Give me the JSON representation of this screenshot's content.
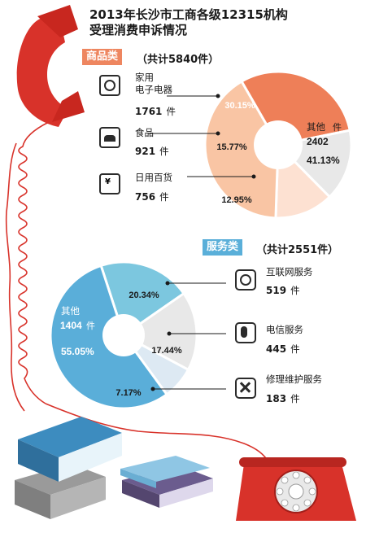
{
  "title_line1": "2013年长沙市工商各级12315机构",
  "title_line2": "受理消费申诉情况",
  "unit": "件",
  "goods": {
    "tag": "商品类",
    "total": "（共计5840件）",
    "items": [
      {
        "label": "家用\n电子电器",
        "count": "1761",
        "pct": "30.15%"
      },
      {
        "label": "食品",
        "count": "921",
        "pct": "15.77%"
      },
      {
        "label": "日用百货",
        "count": "756",
        "pct": "12.95%"
      },
      {
        "label": "其他",
        "count": "2402",
        "pct": "41.13%"
      }
    ]
  },
  "services": {
    "tag": "服务类",
    "total": "（共计2551件）",
    "items": [
      {
        "label": "互联网服务",
        "count": "519",
        "pct": "20.34%"
      },
      {
        "label": "电信服务",
        "count": "445",
        "pct": "17.44%"
      },
      {
        "label": "修理维护服务",
        "count": "183",
        "pct": "7.17%"
      },
      {
        "label": "其他",
        "count": "1404",
        "pct": "55.05%"
      }
    ]
  },
  "chart_data": [
    {
      "type": "pie",
      "title": "商品类（共计5840件）",
      "categories": [
        "家用电子电器",
        "食品",
        "日用百货",
        "其他"
      ],
      "values": [
        1761,
        921,
        756,
        2402
      ],
      "percent": [
        30.15,
        15.77,
        12.95,
        41.13
      ],
      "colors": [
        "#ee7f58",
        "#e8e8e8",
        "#fde1d2",
        "#f9c5a4"
      ]
    },
    {
      "type": "pie",
      "title": "服务类（共计2551件）",
      "categories": [
        "互联网服务",
        "电信服务",
        "修理维护服务",
        "其他"
      ],
      "values": [
        519,
        445,
        183,
        1404
      ],
      "percent": [
        20.34,
        17.44,
        7.17,
        55.05
      ],
      "colors": [
        "#7cc7df",
        "#e8e8e8",
        "#dde9f3",
        "#5aaed9"
      ]
    }
  ]
}
